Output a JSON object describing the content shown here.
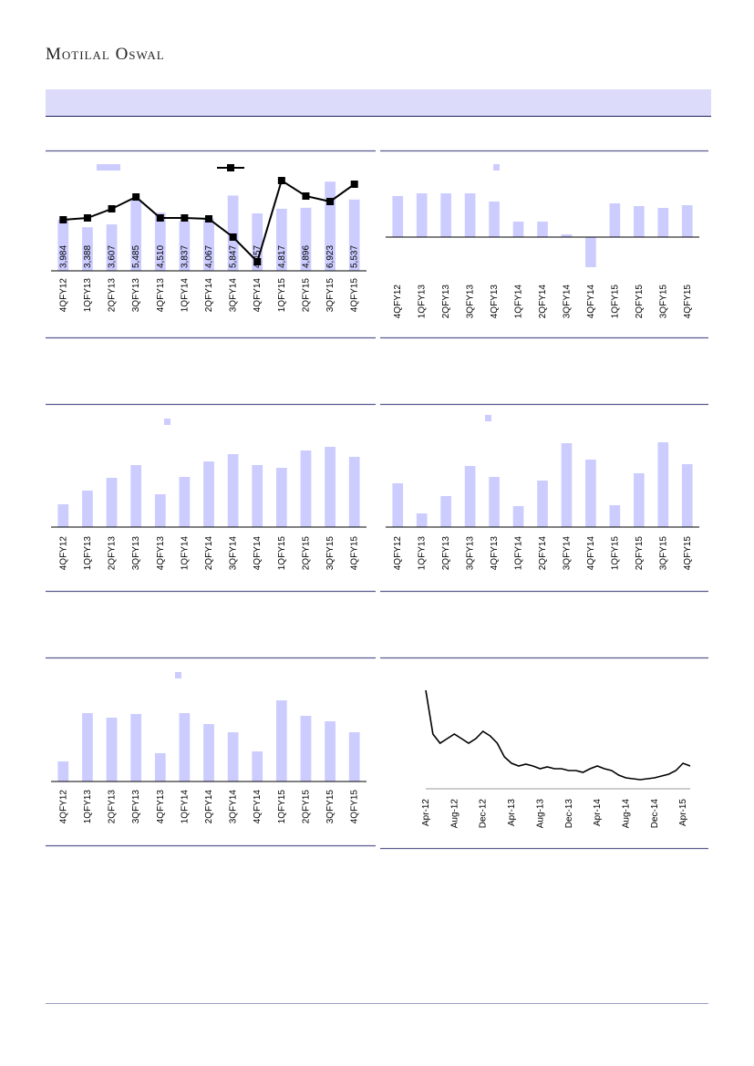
{
  "header": {
    "brand": "Motilal Oswal"
  },
  "chart_data": [
    {
      "type": "bar-line",
      "categories": [
        "4QFY12",
        "1QFY13",
        "2QFY13",
        "3QFY13",
        "4QFY13",
        "1QFY14",
        "2QFY14",
        "3QFY14",
        "4QFY14",
        "1QFY15",
        "2QFY15",
        "3QFY15",
        "4QFY15"
      ],
      "series": [
        {
          "color": "#ccccff",
          "values": [
            3984,
            3388,
            3607,
            5485,
            4510,
            3837,
            4067,
            5847,
            4457,
            4817,
            4896,
            6923,
            5537
          ],
          "value_labels": [
            "3,984",
            "3,388",
            "3,607",
            "5,485",
            "4,510",
            "3,837",
            "4,067",
            "5,847",
            "4,457",
            "4,817",
            "4,896",
            "6,923",
            "5,537"
          ]
        },
        {
          "color": "#000000",
          "axis": "y2",
          "values": [
            56,
            58,
            68,
            81,
            58,
            58,
            57,
            37,
            10,
            99,
            82,
            76,
            95
          ]
        }
      ],
      "ylim": [
        0,
        8000
      ],
      "y2lim": [
        0,
        113
      ]
    },
    {
      "type": "bar",
      "categories": [
        "4QFY12",
        "1QFY13",
        "2QFY13",
        "3QFY13",
        "4QFY13",
        "1QFY14",
        "2QFY14",
        "3QFY14",
        "4QFY14",
        "1QFY15",
        "2QFY15",
        "3QFY15",
        "4QFY15"
      ],
      "values": [
        45,
        48,
        48,
        48,
        39,
        17,
        17,
        3,
        -33,
        37,
        34,
        32,
        35
      ],
      "color": "#ccccff",
      "ylim": [
        -40,
        80
      ]
    },
    {
      "type": "bar",
      "categories": [
        "4QFY12",
        "1QFY13",
        "2QFY13",
        "3QFY13",
        "4QFY13",
        "1QFY14",
        "2QFY14",
        "3QFY14",
        "4QFY14",
        "1QFY15",
        "2QFY15",
        "3QFY15",
        "4QFY15"
      ],
      "values": [
        25,
        40,
        54,
        68,
        36,
        55,
        72,
        80,
        68,
        65,
        84,
        88,
        77
      ],
      "color": "#ccccff",
      "ylim": [
        0,
        100
      ]
    },
    {
      "type": "bar",
      "categories": [
        "4QFY12",
        "1QFY13",
        "2QFY13",
        "3QFY13",
        "4QFY13",
        "1QFY14",
        "2QFY14",
        "3QFY14",
        "4QFY14",
        "1QFY15",
        "2QFY15",
        "3QFY15",
        "4QFY15"
      ],
      "values": [
        48,
        15,
        34,
        67,
        55,
        23,
        51,
        92,
        74,
        24,
        59,
        93,
        69
      ],
      "color": "#ccccff",
      "ylim": [
        0,
        100
      ]
    },
    {
      "type": "bar",
      "categories": [
        "4QFY12",
        "1QFY13",
        "2QFY13",
        "3QFY13",
        "4QFY13",
        "1QFY14",
        "2QFY14",
        "3QFY14",
        "4QFY14",
        "1QFY15",
        "2QFY15",
        "3QFY15",
        "4QFY15"
      ],
      "values": [
        22,
        75,
        70,
        74,
        31,
        75,
        63,
        54,
        33,
        89,
        72,
        66,
        54
      ],
      "color": "#ccccff",
      "ylim": [
        0,
        100
      ]
    },
    {
      "type": "line",
      "categories": [
        "Apr-12",
        null,
        null,
        null,
        "Aug-12",
        null,
        null,
        null,
        "Dec-12",
        null,
        null,
        null,
        "Apr-13",
        null,
        null,
        null,
        "Aug-13",
        null,
        null,
        null,
        "Dec-13",
        null,
        null,
        null,
        "Apr-14",
        null,
        null,
        null,
        "Aug-14",
        null,
        null,
        null,
        "Dec-14",
        null,
        null,
        null,
        "Apr-15",
        null
      ],
      "values": [
        108,
        60,
        50,
        55,
        60,
        55,
        50,
        55,
        63,
        58,
        50,
        35,
        28,
        25,
        27,
        25,
        22,
        24,
        22,
        22,
        20,
        20,
        18,
        22,
        25,
        22,
        20,
        15,
        12,
        11,
        10,
        11,
        12,
        14,
        16,
        20,
        28,
        25
      ],
      "color": "#000000",
      "ylim": [
        0,
        110
      ]
    }
  ]
}
